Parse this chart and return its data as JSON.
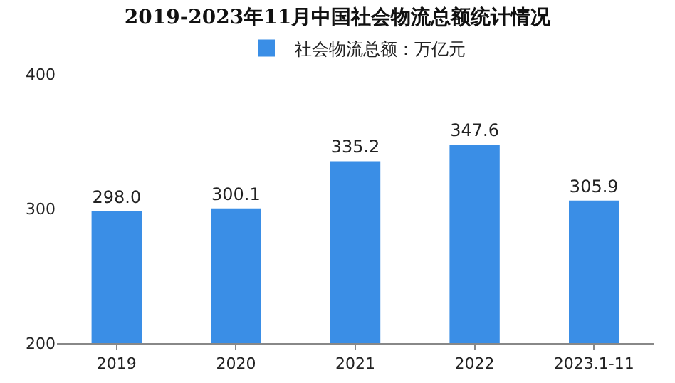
{
  "chart_data": {
    "type": "bar",
    "title": "2019-2023年11月中国社会物流总额统计情况",
    "categories": [
      "2019",
      "2020",
      "2021",
      "2022",
      "2023.1-11"
    ],
    "series": [
      {
        "name": "社会物流总额：万亿元",
        "color": "#3a8ee6",
        "values": [
          298.0,
          300.1,
          335.2,
          347.6,
          305.9
        ]
      }
    ],
    "value_labels": [
      "298.0",
      "300.1",
      "335.2",
      "347.6",
      "305.9"
    ],
    "ylim": [
      200,
      400
    ],
    "yticks": [
      200,
      300,
      400
    ],
    "grid": false,
    "legend": "top"
  }
}
